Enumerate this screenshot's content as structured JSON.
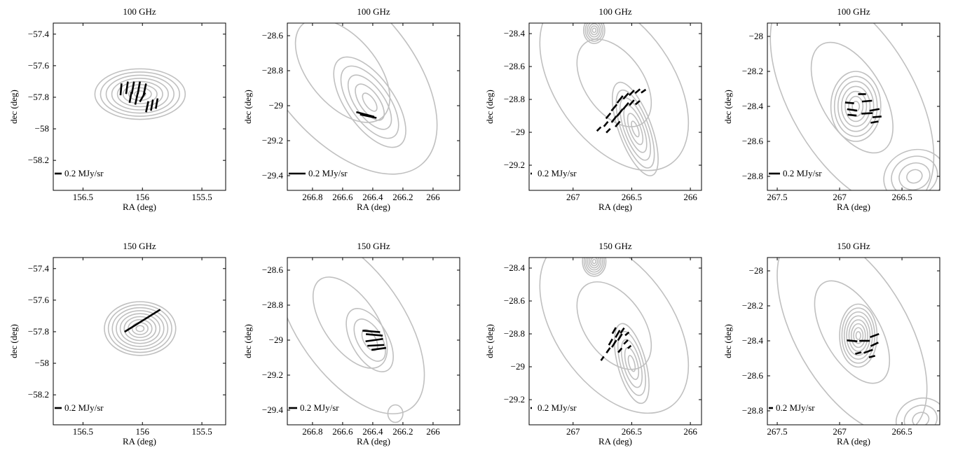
{
  "chart_data": [
    {
      "type": "polarization-map",
      "title": "100 GHz",
      "xlabel": "RA (deg)",
      "ylabel": "dec (deg)",
      "xlim": [
        156.75,
        155.3
      ],
      "ylim": [
        -58.39,
        -57.33
      ],
      "xticks": [
        156.5,
        156,
        155.5
      ],
      "yticks": [
        {
          "value": -57.4,
          "label": "−57.4"
        },
        {
          "value": -57.6,
          "label": "−57.6"
        },
        {
          "value": -57.8,
          "label": "−57.8"
        },
        {
          "value": -58,
          "label": "−58"
        },
        {
          "value": -58.2,
          "label": "−58.2"
        }
      ],
      "scale": {
        "value": 0.2,
        "label": "0.2 MJy/sr"
      },
      "contour_color": "#c0c0c0",
      "vector_color": "#000000",
      "contours": [
        [
          156.02,
          -57.78,
          0.38,
          0.16,
          0,
          8
        ]
      ],
      "vectors": [
        [
          156.18,
          -57.75,
          0.34,
          85
        ],
        [
          156.13,
          -57.74,
          0.36,
          82
        ],
        [
          156.08,
          -57.74,
          0.36,
          80
        ],
        [
          156.03,
          -57.74,
          0.36,
          80
        ],
        [
          155.98,
          -57.75,
          0.34,
          78
        ],
        [
          156.1,
          -57.8,
          0.32,
          80
        ],
        [
          156.05,
          -57.81,
          0.34,
          78
        ],
        [
          156.0,
          -57.8,
          0.3,
          60
        ],
        [
          155.96,
          -57.86,
          0.32,
          78
        ],
        [
          155.92,
          -57.85,
          0.32,
          80
        ],
        [
          155.88,
          -57.84,
          0.3,
          80
        ]
      ]
    },
    {
      "type": "polarization-map",
      "title": "100 GHz",
      "xlabel": "RA (deg)",
      "ylabel": "dec (deg)",
      "xlim": [
        266.967,
        265.823
      ],
      "ylim": [
        -29.484,
        -28.528
      ],
      "xticks": [
        266.8,
        266.6,
        266.4,
        266.2,
        266
      ],
      "yticks": [
        {
          "value": -28.6,
          "label": "−28.6"
        },
        {
          "value": -28.8,
          "label": "−28.8"
        },
        {
          "value": -29,
          "label": "−29"
        },
        {
          "value": -29.2,
          "label": "−29.2"
        },
        {
          "value": -29.4,
          "label": "−29.4"
        }
      ],
      "scale": {
        "value": 0.2,
        "label": "0.2 MJy/sr"
      },
      "contour_color": "#c0c0c0",
      "vector_color": "#000000",
      "contours": [
        [
          266.42,
          -28.98,
          0.16,
          0.3,
          -35,
          5
        ],
        [
          266.6,
          -28.8,
          0.45,
          0.7,
          -40,
          2
        ]
      ],
      "vectors": [
        [
          266.45,
          -29.05,
          0.22,
          -15
        ],
        [
          266.43,
          -29.06,
          0.2,
          -12
        ]
      ]
    },
    {
      "type": "polarization-map",
      "title": "100 GHz",
      "xlabel": "RA (deg)",
      "ylabel": "dec (deg)",
      "xlim": [
        267.375,
        265.905
      ],
      "ylim": [
        -29.353,
        -28.336
      ],
      "xticks": [
        267,
        266.5,
        266
      ],
      "yticks": [
        {
          "value": -28.4,
          "label": "−28.4"
        },
        {
          "value": -28.6,
          "label": "−28.6"
        },
        {
          "value": -28.8,
          "label": "−28.8"
        },
        {
          "value": -29,
          "label": "−29"
        },
        {
          "value": -29.2,
          "label": "−29.2"
        }
      ],
      "scale": {
        "value": 0.2,
        "label": "0.2 MJy/sr"
      },
      "contour_color": "#c0c0c0",
      "vector_color": "#000000",
      "contours": [
        [
          266.82,
          -28.38,
          0.09,
          0.08,
          0,
          6
        ],
        [
          266.47,
          -28.98,
          0.14,
          0.3,
          -20,
          6
        ],
        [
          266.65,
          -28.7,
          0.5,
          0.6,
          -35,
          2
        ]
      ],
      "vectors": [
        [
          266.7,
          -28.9,
          1.0,
          50
        ],
        [
          266.65,
          -28.85,
          1.2,
          50
        ],
        [
          266.6,
          -28.8,
          1.3,
          52
        ],
        [
          266.55,
          -28.78,
          1.1,
          48
        ],
        [
          266.5,
          -28.76,
          1.0,
          45
        ],
        [
          266.45,
          -28.75,
          0.9,
          40
        ],
        [
          266.4,
          -28.75,
          0.8,
          35
        ],
        [
          266.72,
          -28.95,
          0.9,
          50
        ],
        [
          266.65,
          -28.92,
          1.2,
          52
        ],
        [
          266.6,
          -28.88,
          1.3,
          52
        ],
        [
          266.55,
          -28.84,
          1.2,
          50
        ],
        [
          266.5,
          -28.82,
          1.0,
          48
        ],
        [
          266.78,
          -28.98,
          0.8,
          45
        ],
        [
          266.7,
          -28.99,
          0.8,
          45
        ],
        [
          266.62,
          -28.95,
          1.0,
          50
        ],
        [
          266.45,
          -28.82,
          0.8,
          40
        ]
      ]
    },
    {
      "type": "polarization-map",
      "title": "100 GHz",
      "xlabel": "RA (deg)",
      "ylabel": "dec (deg)",
      "xlim": [
        267.579,
        266.197
      ],
      "ylim": [
        -28.88,
        -27.924
      ],
      "xticks": [
        267.5,
        267,
        266.5
      ],
      "yticks": [
        {
          "value": -28,
          "label": "−28"
        },
        {
          "value": -28.2,
          "label": "−28.2"
        },
        {
          "value": -28.4,
          "label": "−28.4"
        },
        {
          "value": -28.6,
          "label": "−28.6"
        },
        {
          "value": -28.8,
          "label": "−28.8"
        }
      ],
      "scale": {
        "value": 0.2,
        "label": "0.2 MJy/sr"
      },
      "contour_color": "#c0c0c0",
      "vector_color": "#000000",
      "contours": [
        [
          266.87,
          -28.4,
          0.2,
          0.2,
          0,
          7
        ],
        [
          266.4,
          -28.8,
          0.25,
          0.15,
          -20,
          4
        ],
        [
          266.9,
          -28.35,
          0.5,
          0.7,
          -30,
          2
        ]
      ],
      "vectors": [
        [
          266.82,
          -28.33,
          0.14,
          0
        ],
        [
          266.78,
          -28.37,
          0.18,
          5
        ],
        [
          266.92,
          -28.38,
          0.16,
          -5
        ],
        [
          266.9,
          -28.42,
          0.18,
          -8
        ],
        [
          266.78,
          -28.44,
          0.2,
          3
        ],
        [
          266.72,
          -28.42,
          0.18,
          10
        ],
        [
          266.7,
          -28.46,
          0.16,
          5
        ],
        [
          266.72,
          -28.49,
          0.14,
          10
        ],
        [
          266.9,
          -28.45,
          0.16,
          -5
        ]
      ]
    },
    {
      "type": "polarization-map",
      "title": "150 GHz",
      "xlabel": "RA (deg)",
      "ylabel": "dec (deg)",
      "xlim": [
        156.75,
        155.3
      ],
      "ylim": [
        -58.39,
        -57.33
      ],
      "xticks": [
        156.5,
        156,
        155.5
      ],
      "yticks": [
        {
          "value": -57.4,
          "label": "−57.4"
        },
        {
          "value": -57.6,
          "label": "−57.6"
        },
        {
          "value": -57.8,
          "label": "−57.8"
        },
        {
          "value": -58,
          "label": "−58"
        },
        {
          "value": -58.2,
          "label": "−58.2"
        }
      ],
      "scale": {
        "value": 0.2,
        "label": "0.2 MJy/sr"
      },
      "contour_color": "#c0c0c0",
      "vector_color": "#000000",
      "contours": [
        [
          156.02,
          -57.78,
          0.3,
          0.17,
          0,
          9
        ]
      ],
      "vectors": [
        [
          156.0,
          -57.73,
          1.2,
          32
        ]
      ]
    },
    {
      "type": "polarization-map",
      "title": "150 GHz",
      "xlabel": "RA (deg)",
      "ylabel": "dec (deg)",
      "xlim": [
        266.967,
        265.823
      ],
      "ylim": [
        -29.484,
        -28.528
      ],
      "xticks": [
        266.8,
        266.6,
        266.4,
        266.2,
        266
      ],
      "yticks": [
        {
          "value": -28.6,
          "label": "−28.6"
        },
        {
          "value": -28.8,
          "label": "−28.8"
        },
        {
          "value": -29,
          "label": "−29"
        },
        {
          "value": -29.2,
          "label": "−29.2"
        },
        {
          "value": -29.4,
          "label": "−29.4"
        }
      ],
      "scale": {
        "value": 0.2,
        "label": "0.2 MJy/sr"
      },
      "contour_color": "#c0c0c0",
      "vector_color": "#000000",
      "contours": [
        [
          266.42,
          -29.0,
          0.12,
          0.2,
          -30,
          3
        ],
        [
          266.55,
          -28.9,
          0.35,
          0.6,
          -35,
          2
        ],
        [
          266.25,
          -29.42,
          0.05,
          0.05,
          0,
          1
        ]
      ],
      "vectors": [
        [
          266.41,
          -28.95,
          0.42,
          -5
        ],
        [
          266.39,
          -28.97,
          0.4,
          -5
        ],
        [
          266.39,
          -29.0,
          0.42,
          8
        ],
        [
          266.38,
          -29.03,
          0.4,
          3
        ],
        [
          266.36,
          -29.05,
          0.35,
          8
        ]
      ]
    },
    {
      "type": "polarization-map",
      "title": "150 GHz",
      "xlabel": "RA (deg)",
      "ylabel": "dec (deg)",
      "xlim": [
        267.375,
        265.905
      ],
      "ylim": [
        -29.353,
        -28.336
      ],
      "xticks": [
        267,
        266.5,
        266
      ],
      "yticks": [
        {
          "value": -28.4,
          "label": "−28.4"
        },
        {
          "value": -28.6,
          "label": "−28.6"
        },
        {
          "value": -28.8,
          "label": "−28.8"
        },
        {
          "value": -29,
          "label": "−29"
        },
        {
          "value": -29.2,
          "label": "−29.2"
        }
      ],
      "scale": {
        "value": 0.2,
        "label": "0.2 MJy/sr"
      },
      "contour_color": "#c0c0c0",
      "vector_color": "#000000",
      "contours": [
        [
          266.82,
          -28.36,
          0.1,
          0.09,
          0,
          7
        ],
        [
          266.5,
          -28.98,
          0.12,
          0.25,
          -15,
          5
        ],
        [
          266.65,
          -28.75,
          0.5,
          0.6,
          -35,
          2
        ]
      ],
      "vectors": [
        [
          266.65,
          -28.78,
          1.0,
          60
        ],
        [
          266.62,
          -28.8,
          1.2,
          60
        ],
        [
          266.6,
          -28.82,
          1.1,
          58
        ],
        [
          266.68,
          -28.85,
          1.0,
          60
        ],
        [
          266.65,
          -28.86,
          1.2,
          58
        ],
        [
          266.7,
          -28.9,
          0.9,
          55
        ],
        [
          266.6,
          -28.9,
          0.8,
          50
        ],
        [
          266.55,
          -28.85,
          0.8,
          45
        ],
        [
          266.75,
          -28.95,
          0.7,
          55
        ],
        [
          266.58,
          -28.78,
          0.9,
          55
        ],
        [
          266.54,
          -28.8,
          0.7,
          40
        ],
        [
          266.52,
          -28.88,
          0.6,
          40
        ]
      ]
    },
    {
      "type": "polarization-map",
      "title": "150 GHz",
      "xlabel": "RA (deg)",
      "ylabel": "dec (deg)",
      "xlim": [
        267.579,
        266.197
      ],
      "ylim": [
        -28.88,
        -27.924
      ],
      "xticks": [
        267.5,
        267,
        266.5
      ],
      "yticks": [
        {
          "value": -28,
          "label": "−28"
        },
        {
          "value": -28.2,
          "label": "−28.2"
        },
        {
          "value": -28.4,
          "label": "−28.4"
        },
        {
          "value": -28.6,
          "label": "−28.6"
        },
        {
          "value": -28.8,
          "label": "−28.8"
        }
      ],
      "scale": {
        "value": 0.2,
        "label": "0.2 MJy/sr"
      },
      "contour_color": "#c0c0c0",
      "vector_color": "#000000",
      "contours": [
        [
          266.85,
          -28.37,
          0.15,
          0.18,
          0,
          8
        ],
        [
          266.35,
          -28.85,
          0.2,
          0.12,
          -20,
          3
        ],
        [
          266.9,
          -28.35,
          0.45,
          0.65,
          -30,
          2
        ]
      ],
      "vectors": [
        [
          266.9,
          -28.4,
          0.5,
          -5
        ],
        [
          266.8,
          -28.4,
          0.5,
          0
        ],
        [
          266.72,
          -28.37,
          0.45,
          20
        ],
        [
          266.72,
          -28.42,
          0.4,
          25
        ],
        [
          266.77,
          -28.46,
          0.45,
          20
        ],
        [
          266.85,
          -28.47,
          0.3,
          15
        ],
        [
          266.74,
          -28.49,
          0.3,
          15
        ]
      ]
    }
  ]
}
